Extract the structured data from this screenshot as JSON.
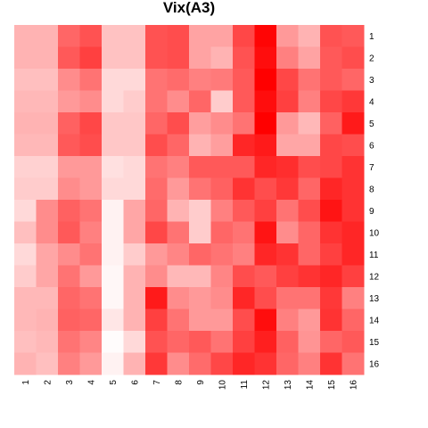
{
  "chart_data": {
    "type": "heatmap",
    "title": "Vix(A3)",
    "row_labels": [
      "1",
      "2",
      "3",
      "4",
      "5",
      "6",
      "7",
      "8",
      "9",
      "10",
      "11",
      "12",
      "13",
      "14",
      "15",
      "16"
    ],
    "col_labels": [
      "1",
      "2",
      "3",
      "4",
      "5",
      "6",
      "7",
      "8",
      "9",
      "10",
      "11",
      "12",
      "13",
      "14",
      "15",
      "16"
    ],
    "color_low": "#ffffff",
    "color_high": "#ff0000",
    "values": [
      [
        0.3,
        0.3,
        0.6,
        0.68,
        0.24,
        0.24,
        0.68,
        0.7,
        0.36,
        0.36,
        0.72,
        0.98,
        0.4,
        0.3,
        0.68,
        0.65
      ],
      [
        0.3,
        0.3,
        0.65,
        0.75,
        0.24,
        0.24,
        0.68,
        0.7,
        0.36,
        0.3,
        0.68,
        0.95,
        0.5,
        0.36,
        0.65,
        0.7
      ],
      [
        0.25,
        0.25,
        0.45,
        0.55,
        0.15,
        0.15,
        0.55,
        0.58,
        0.5,
        0.52,
        0.65,
        1.0,
        0.72,
        0.55,
        0.65,
        0.6
      ],
      [
        0.28,
        0.28,
        0.4,
        0.45,
        0.15,
        0.2,
        0.55,
        0.45,
        0.6,
        0.2,
        0.65,
        0.95,
        0.75,
        0.5,
        0.72,
        0.78
      ],
      [
        0.3,
        0.3,
        0.62,
        0.72,
        0.22,
        0.22,
        0.6,
        0.7,
        0.38,
        0.45,
        0.55,
        1.0,
        0.4,
        0.28,
        0.62,
        0.9
      ],
      [
        0.28,
        0.28,
        0.65,
        0.7,
        0.22,
        0.22,
        0.7,
        0.6,
        0.3,
        0.38,
        0.85,
        0.9,
        0.35,
        0.35,
        0.72,
        0.7
      ],
      [
        0.18,
        0.18,
        0.4,
        0.4,
        0.12,
        0.15,
        0.55,
        0.5,
        0.65,
        0.65,
        0.65,
        0.85,
        0.82,
        0.7,
        0.72,
        0.8
      ],
      [
        0.2,
        0.2,
        0.45,
        0.4,
        0.15,
        0.15,
        0.58,
        0.4,
        0.55,
        0.62,
        0.8,
        0.7,
        0.78,
        0.6,
        0.85,
        0.8
      ],
      [
        0.15,
        0.45,
        0.62,
        0.55,
        0.05,
        0.35,
        0.6,
        0.3,
        0.2,
        0.5,
        0.65,
        0.75,
        0.55,
        0.7,
        0.92,
        0.8
      ],
      [
        0.25,
        0.45,
        0.65,
        0.5,
        0.05,
        0.35,
        0.72,
        0.55,
        0.2,
        0.6,
        0.55,
        0.92,
        0.45,
        0.6,
        0.8,
        0.85
      ],
      [
        0.15,
        0.35,
        0.45,
        0.55,
        0.05,
        0.2,
        0.4,
        0.48,
        0.6,
        0.55,
        0.5,
        0.85,
        0.8,
        0.6,
        0.75,
        0.85
      ],
      [
        0.2,
        0.35,
        0.55,
        0.4,
        0.03,
        0.3,
        0.45,
        0.28,
        0.28,
        0.48,
        0.7,
        0.65,
        0.75,
        0.8,
        0.85,
        0.75
      ],
      [
        0.28,
        0.28,
        0.6,
        0.55,
        0.03,
        0.3,
        0.9,
        0.45,
        0.4,
        0.45,
        0.85,
        0.7,
        0.55,
        0.55,
        0.78,
        0.5
      ],
      [
        0.28,
        0.3,
        0.62,
        0.6,
        0.1,
        0.3,
        0.75,
        0.55,
        0.4,
        0.4,
        0.7,
        0.95,
        0.5,
        0.4,
        0.8,
        0.6
      ],
      [
        0.25,
        0.28,
        0.55,
        0.48,
        0.01,
        0.15,
        0.68,
        0.6,
        0.65,
        0.55,
        0.75,
        0.88,
        0.62,
        0.42,
        0.6,
        0.65
      ],
      [
        0.3,
        0.25,
        0.5,
        0.4,
        0.05,
        0.3,
        0.78,
        0.45,
        0.58,
        0.72,
        0.85,
        0.8,
        0.6,
        0.5,
        0.8,
        0.55
      ]
    ]
  }
}
